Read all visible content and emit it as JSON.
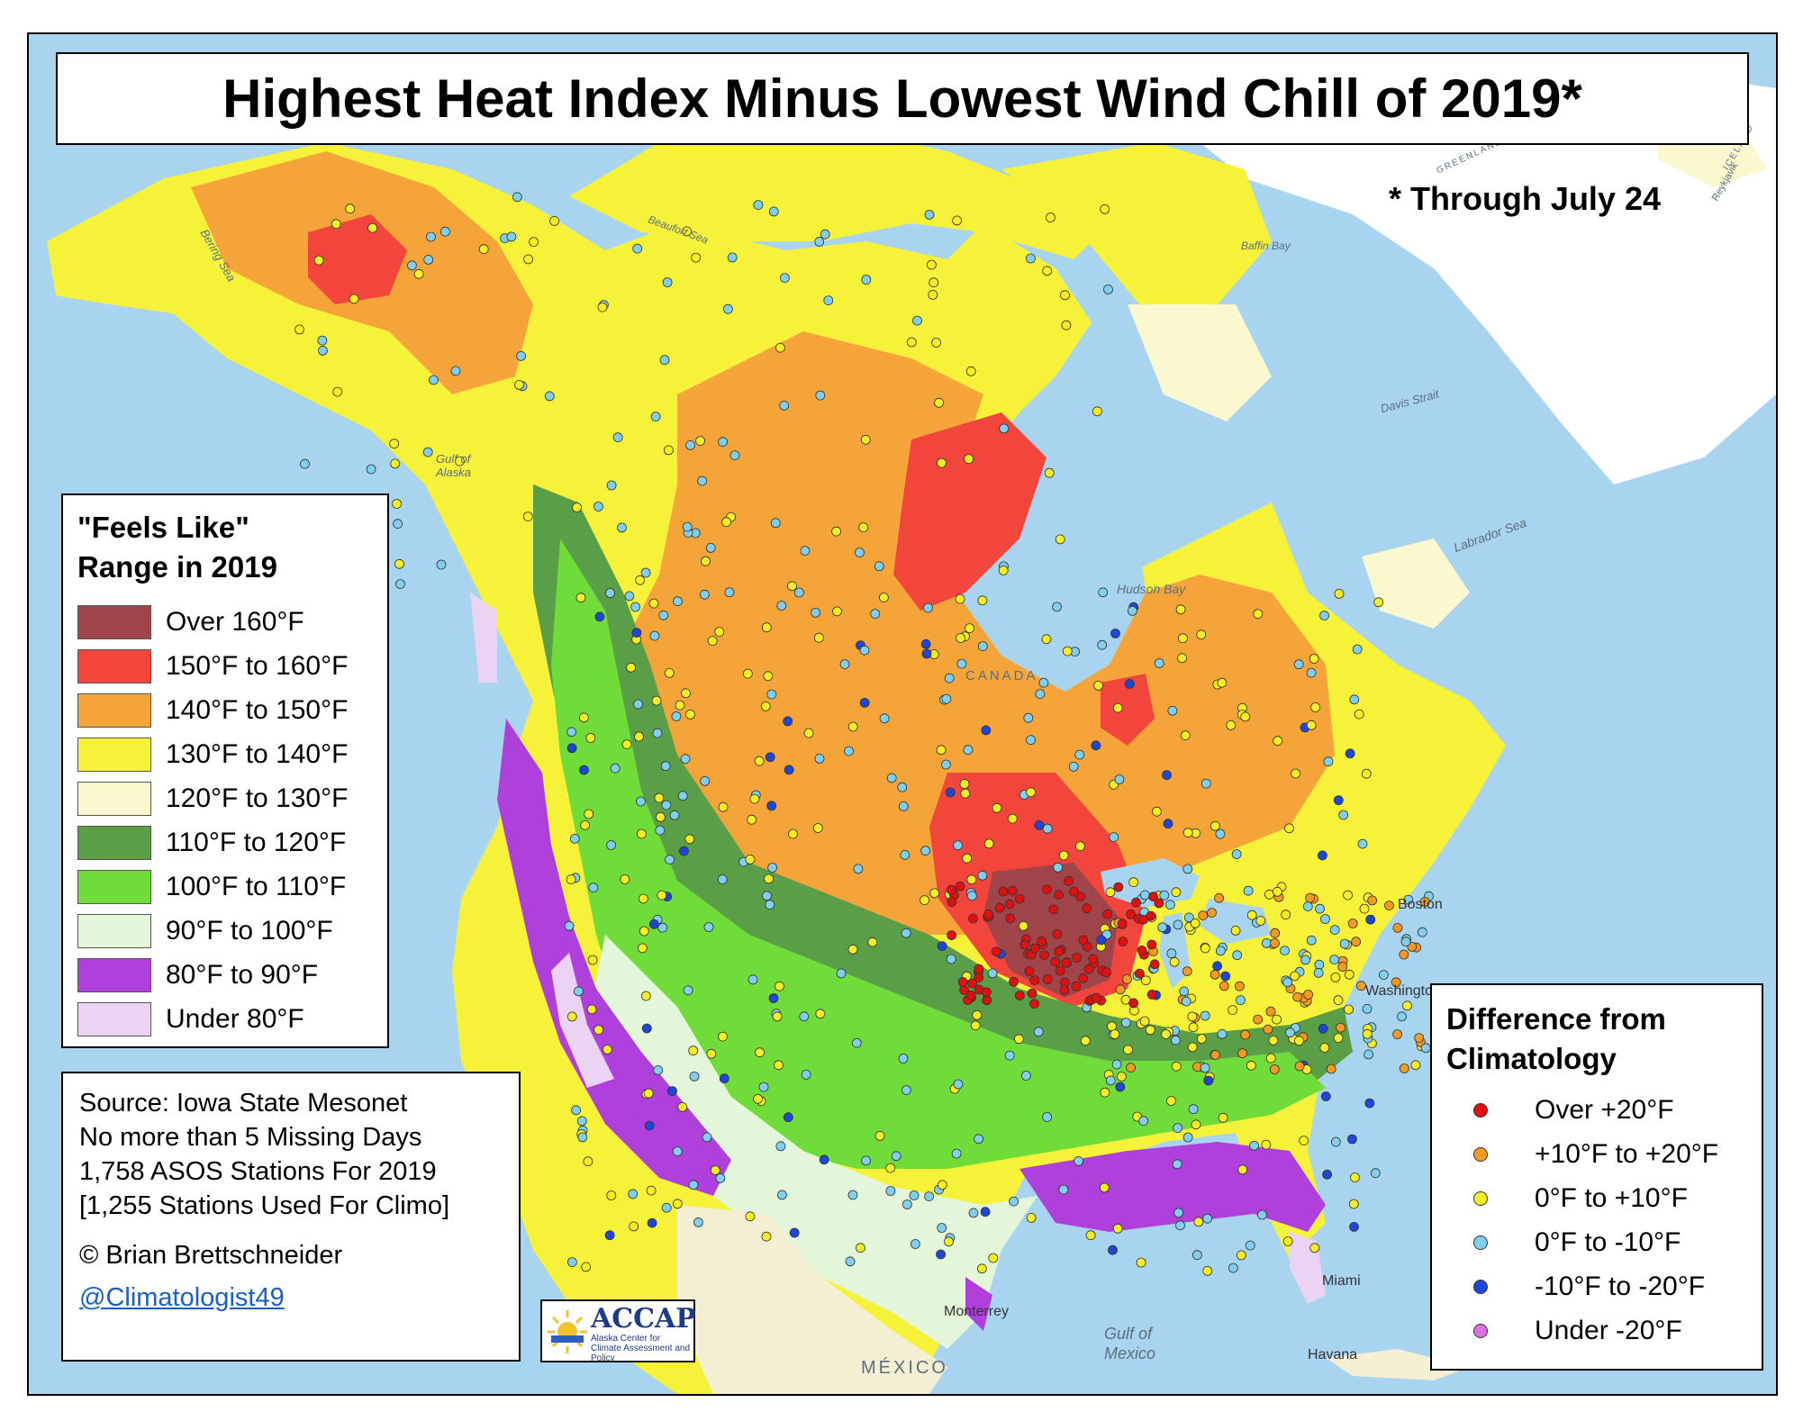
{
  "title": "Highest Heat Index Minus Lowest Wind Chill of 2019*",
  "note": "* Through July 24",
  "legend": {
    "title_line1": "\"Feels Like\"",
    "title_line2": "Range in 2019",
    "items": [
      {
        "label": "Over 160°F",
        "color": "#a0454a"
      },
      {
        "label": "150°F to 160°F",
        "color": "#f2463c"
      },
      {
        "label": "140°F to 150°F",
        "color": "#f5a43a"
      },
      {
        "label": "130°F to 140°F",
        "color": "#f6f23a"
      },
      {
        "label": "120°F to 130°F",
        "color": "#fbf8d0"
      },
      {
        "label": "110°F to 120°F",
        "color": "#5a9e47"
      },
      {
        "label": "100°F to 110°F",
        "color": "#6fdc3a"
      },
      {
        "label": "90°F to 100°F",
        "color": "#e3f6d9"
      },
      {
        "label": "80°F to 90°F",
        "color": "#b040dc"
      },
      {
        "label": "Under 80°F",
        "color": "#ead3f3"
      }
    ]
  },
  "source": {
    "lines": [
      "Source: Iowa State Mesonet",
      "No more than 5 Missing Days",
      "1,758 ASOS Stations For 2019",
      "[1,255 Stations Used For Climo]"
    ],
    "copyright": "© Brian Brettschneider",
    "handle": "@Climatologist49"
  },
  "logo": {
    "name": "ACCAP",
    "subtitle": "Alaska Center for Climate Assessment and Policy"
  },
  "difference_legend": {
    "title_line1": "Difference from",
    "title_line2": "Climatology",
    "items": [
      {
        "label": "Over +20°F",
        "color": "#e01010"
      },
      {
        "label": "+10°F to +20°F",
        "color": "#f59a20"
      },
      {
        "label": "0°F to +10°F",
        "color": "#f6ee22"
      },
      {
        "label": "0°F to -10°F",
        "color": "#7fd0f0"
      },
      {
        "label": "-10°F to -20°F",
        "color": "#1e46d8"
      },
      {
        "label": "Under -20°F",
        "color": "#e070e0"
      }
    ]
  },
  "map_labels": {
    "bering_sea": "Bering Sea",
    "gulf_of_alaska": "Gulf of Alaska",
    "beaufort_sea": "Beaufort Sea",
    "hudson_bay": "Hudson Bay",
    "labrador_sea": "Labrador Sea",
    "davis_strait": "Davis Strait",
    "baffin_bay": "Baffin Bay",
    "greenland": "GREENLAND",
    "iceland": "ICELAND",
    "reykjavik": "Reykjavik",
    "canada": "CANADA",
    "gulf_of_mexico": "Gulf of Mexico",
    "mexico": "MÉXICO",
    "monterrey": "Monterrey",
    "havana": "Havana",
    "miami": "Miami",
    "boston": "Boston",
    "washington": "Washington"
  }
}
